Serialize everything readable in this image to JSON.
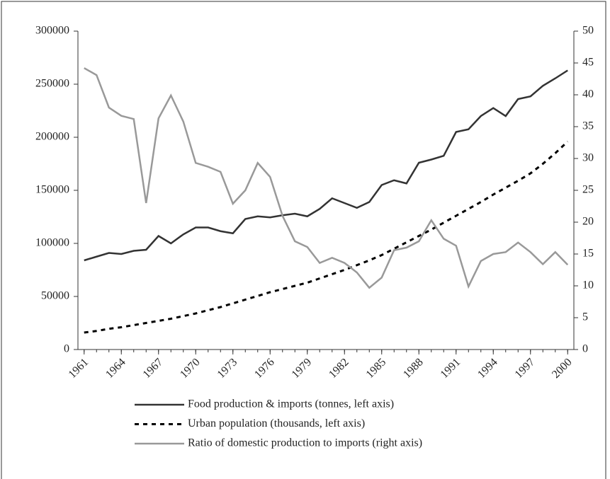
{
  "chart_data": {
    "type": "line",
    "x": [
      1961,
      1962,
      1963,
      1964,
      1965,
      1966,
      1967,
      1968,
      1969,
      1970,
      1971,
      1972,
      1973,
      1974,
      1975,
      1976,
      1977,
      1978,
      1979,
      1980,
      1981,
      1982,
      1983,
      1984,
      1985,
      1986,
      1987,
      1988,
      1989,
      1990,
      1991,
      1992,
      1993,
      1994,
      1995,
      1996,
      1997,
      1998,
      1999,
      2000
    ],
    "xlim": [
      1960.5,
      2000.5
    ],
    "xticks": [
      1961,
      1964,
      1967,
      1970,
      1973,
      1976,
      1979,
      1982,
      1985,
      1988,
      1991,
      1994,
      1997,
      2000
    ],
    "ylim": [
      0,
      300000
    ],
    "yticks": [
      0,
      50000,
      100000,
      150000,
      200000,
      250000,
      300000
    ],
    "y2lim": [
      0,
      50
    ],
    "y2ticks": [
      0,
      5,
      10,
      15,
      20,
      25,
      30,
      35,
      40,
      45,
      50
    ],
    "series": [
      {
        "name": "Food production & imports (tonnes, left axis)",
        "color": "#333333",
        "dash": "solid",
        "axis": "y",
        "values": [
          84000,
          87500,
          91000,
          90000,
          93000,
          94000,
          107000,
          100000,
          108500,
          115000,
          115000,
          111500,
          109500,
          123000,
          125500,
          124500,
          126500,
          128000,
          125500,
          132500,
          142500,
          138000,
          133500,
          139000,
          155000,
          159500,
          156500,
          176000,
          179000,
          182500,
          205000,
          207500,
          220000,
          227500,
          220000,
          236000,
          238500,
          248500,
          255500,
          263000
        ]
      },
      {
        "name": "Urban population (thousands, left axis)",
        "color": "#000000",
        "dash": "dashed",
        "axis": "y",
        "values": [
          16000,
          17500,
          19500,
          21000,
          23000,
          25000,
          27000,
          29000,
          31500,
          34000,
          37000,
          40000,
          43500,
          47000,
          50500,
          54000,
          57000,
          60000,
          63000,
          67000,
          71000,
          75000,
          79500,
          84000,
          89000,
          95000,
          101000,
          107000,
          113000,
          119500,
          126000,
          132500,
          139000,
          146000,
          152500,
          159000,
          166000,
          175000,
          185000,
          196000
        ]
      },
      {
        "name": "Ratio of domestic production to imports (right axis)",
        "color": "#999999",
        "dash": "solid",
        "axis": "y2",
        "values": [
          44.2,
          43.1,
          38,
          36.7,
          36.2,
          23,
          36.3,
          39.9,
          35.8,
          29.3,
          28.7,
          27.9,
          22.9,
          25,
          29.3,
          27.1,
          21,
          17,
          16.1,
          13.6,
          14.4,
          13.6,
          12.1,
          9.7,
          11.3,
          15.6,
          16,
          17,
          20.3,
          17.4,
          16.3,
          9.9,
          13.9,
          15,
          15.3,
          16.8,
          15.3,
          13.4,
          15.3,
          13.3
        ]
      }
    ]
  }
}
